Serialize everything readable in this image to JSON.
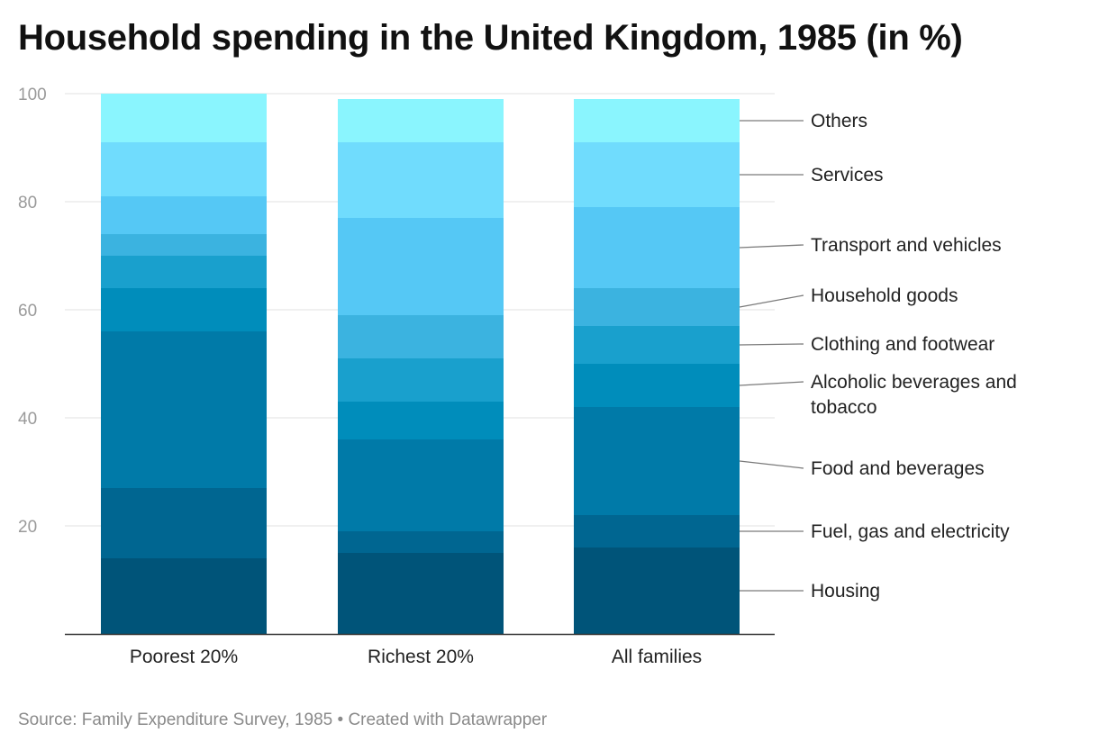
{
  "title": "Household spending in the United Kingdom, 1985 (in %)",
  "footer": {
    "source_text": "Source: Family Expenditure Survey, 1985",
    "separator": "•",
    "credit_text": "Created with Datawrapper"
  },
  "chart_data": {
    "type": "bar",
    "stacked": true,
    "title": "Household spending in the United Kingdom, 1985 (in %)",
    "categories": [
      "Poorest 20%",
      "Richest 20%",
      "All families"
    ],
    "ylim": [
      0,
      100
    ],
    "yticks": [
      20,
      40,
      60,
      80,
      100
    ],
    "grid": true,
    "legend": "right",
    "series": [
      {
        "name": "Housing",
        "color": "#005479",
        "values": [
          14,
          15,
          16
        ]
      },
      {
        "name": "Fuel, gas and electricity",
        "color": "#006691",
        "values": [
          13,
          4,
          6
        ]
      },
      {
        "name": "Food and beverages",
        "color": "#007aa8",
        "values": [
          29,
          17,
          20
        ]
      },
      {
        "name": "Alcoholic beverages and tobacco",
        "color": "#008dbb",
        "values": [
          8,
          7,
          8
        ]
      },
      {
        "name": "Clothing and footwear",
        "color": "#19a0cd",
        "values": [
          6,
          8,
          7
        ]
      },
      {
        "name": "Household goods",
        "color": "#3bb3e0",
        "values": [
          4,
          8,
          7
        ]
      },
      {
        "name": "Transport and vehicles",
        "color": "#55c8f5",
        "values": [
          7,
          18,
          15
        ]
      },
      {
        "name": "Services",
        "color": "#70dcfd",
        "values": [
          10,
          14,
          12
        ]
      },
      {
        "name": "Others",
        "color": "#8af5fe",
        "values": [
          9,
          8,
          8
        ]
      }
    ]
  }
}
